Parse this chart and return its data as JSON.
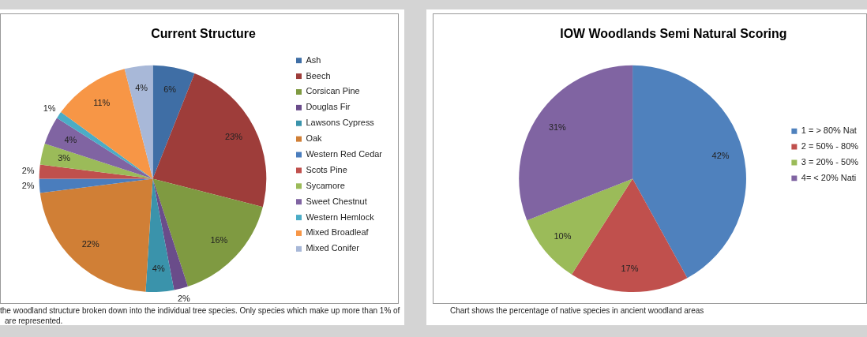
{
  "chart_data": [
    {
      "type": "pie",
      "title": "Current Structure",
      "categories": [
        "Ash",
        "Beech",
        "Corsican Pine",
        "Douglas Fir",
        "Lawsons Cypress",
        "Oak",
        "Western Red Cedar",
        "Scots Pine",
        "Sycamore",
        "Sweet Chestnut",
        "Western Hemlock",
        "Mixed Broadleaf",
        "Mixed Conifer"
      ],
      "values": [
        6,
        23,
        16,
        2,
        4,
        22,
        2,
        2,
        3,
        4,
        1,
        11,
        4
      ],
      "colors": [
        "#3f6ea5",
        "#9e3d3a",
        "#7f9a41",
        "#6a4c8a",
        "#3a93ab",
        "#d07f36",
        "#4a7dbd",
        "#c0504d",
        "#9bbb59",
        "#8064a2",
        "#4bacc6",
        "#f79646",
        "#a8b8d8"
      ],
      "value_labels": [
        "6%",
        "23%",
        "16%",
        "2%",
        "4%",
        "22%",
        "2%",
        "2%",
        "3%",
        "4%",
        "1%",
        "11%",
        "4%"
      ],
      "legend": "right",
      "annotations": [
        "the woodland structure broken down into the individual tree species.  Only species which make up more than 1%  of",
        "are represented."
      ]
    },
    {
      "type": "pie",
      "title": "IOW Woodlands Semi Natural Scoring",
      "categories": [
        "1 = > 80% Nat",
        "2 = 50% - 80%",
        "3 = 20% - 50%",
        "4= < 20% Nati"
      ],
      "values": [
        42,
        17,
        10,
        31
      ],
      "colors": [
        "#4f81bd",
        "#c0504d",
        "#9bbb59",
        "#8064a2"
      ],
      "value_labels": [
        "42%",
        "17%",
        "10%",
        "31%"
      ],
      "legend": "right",
      "annotations": [
        "Chart shows the percentage of native species in ancient woodland areas"
      ]
    }
  ]
}
